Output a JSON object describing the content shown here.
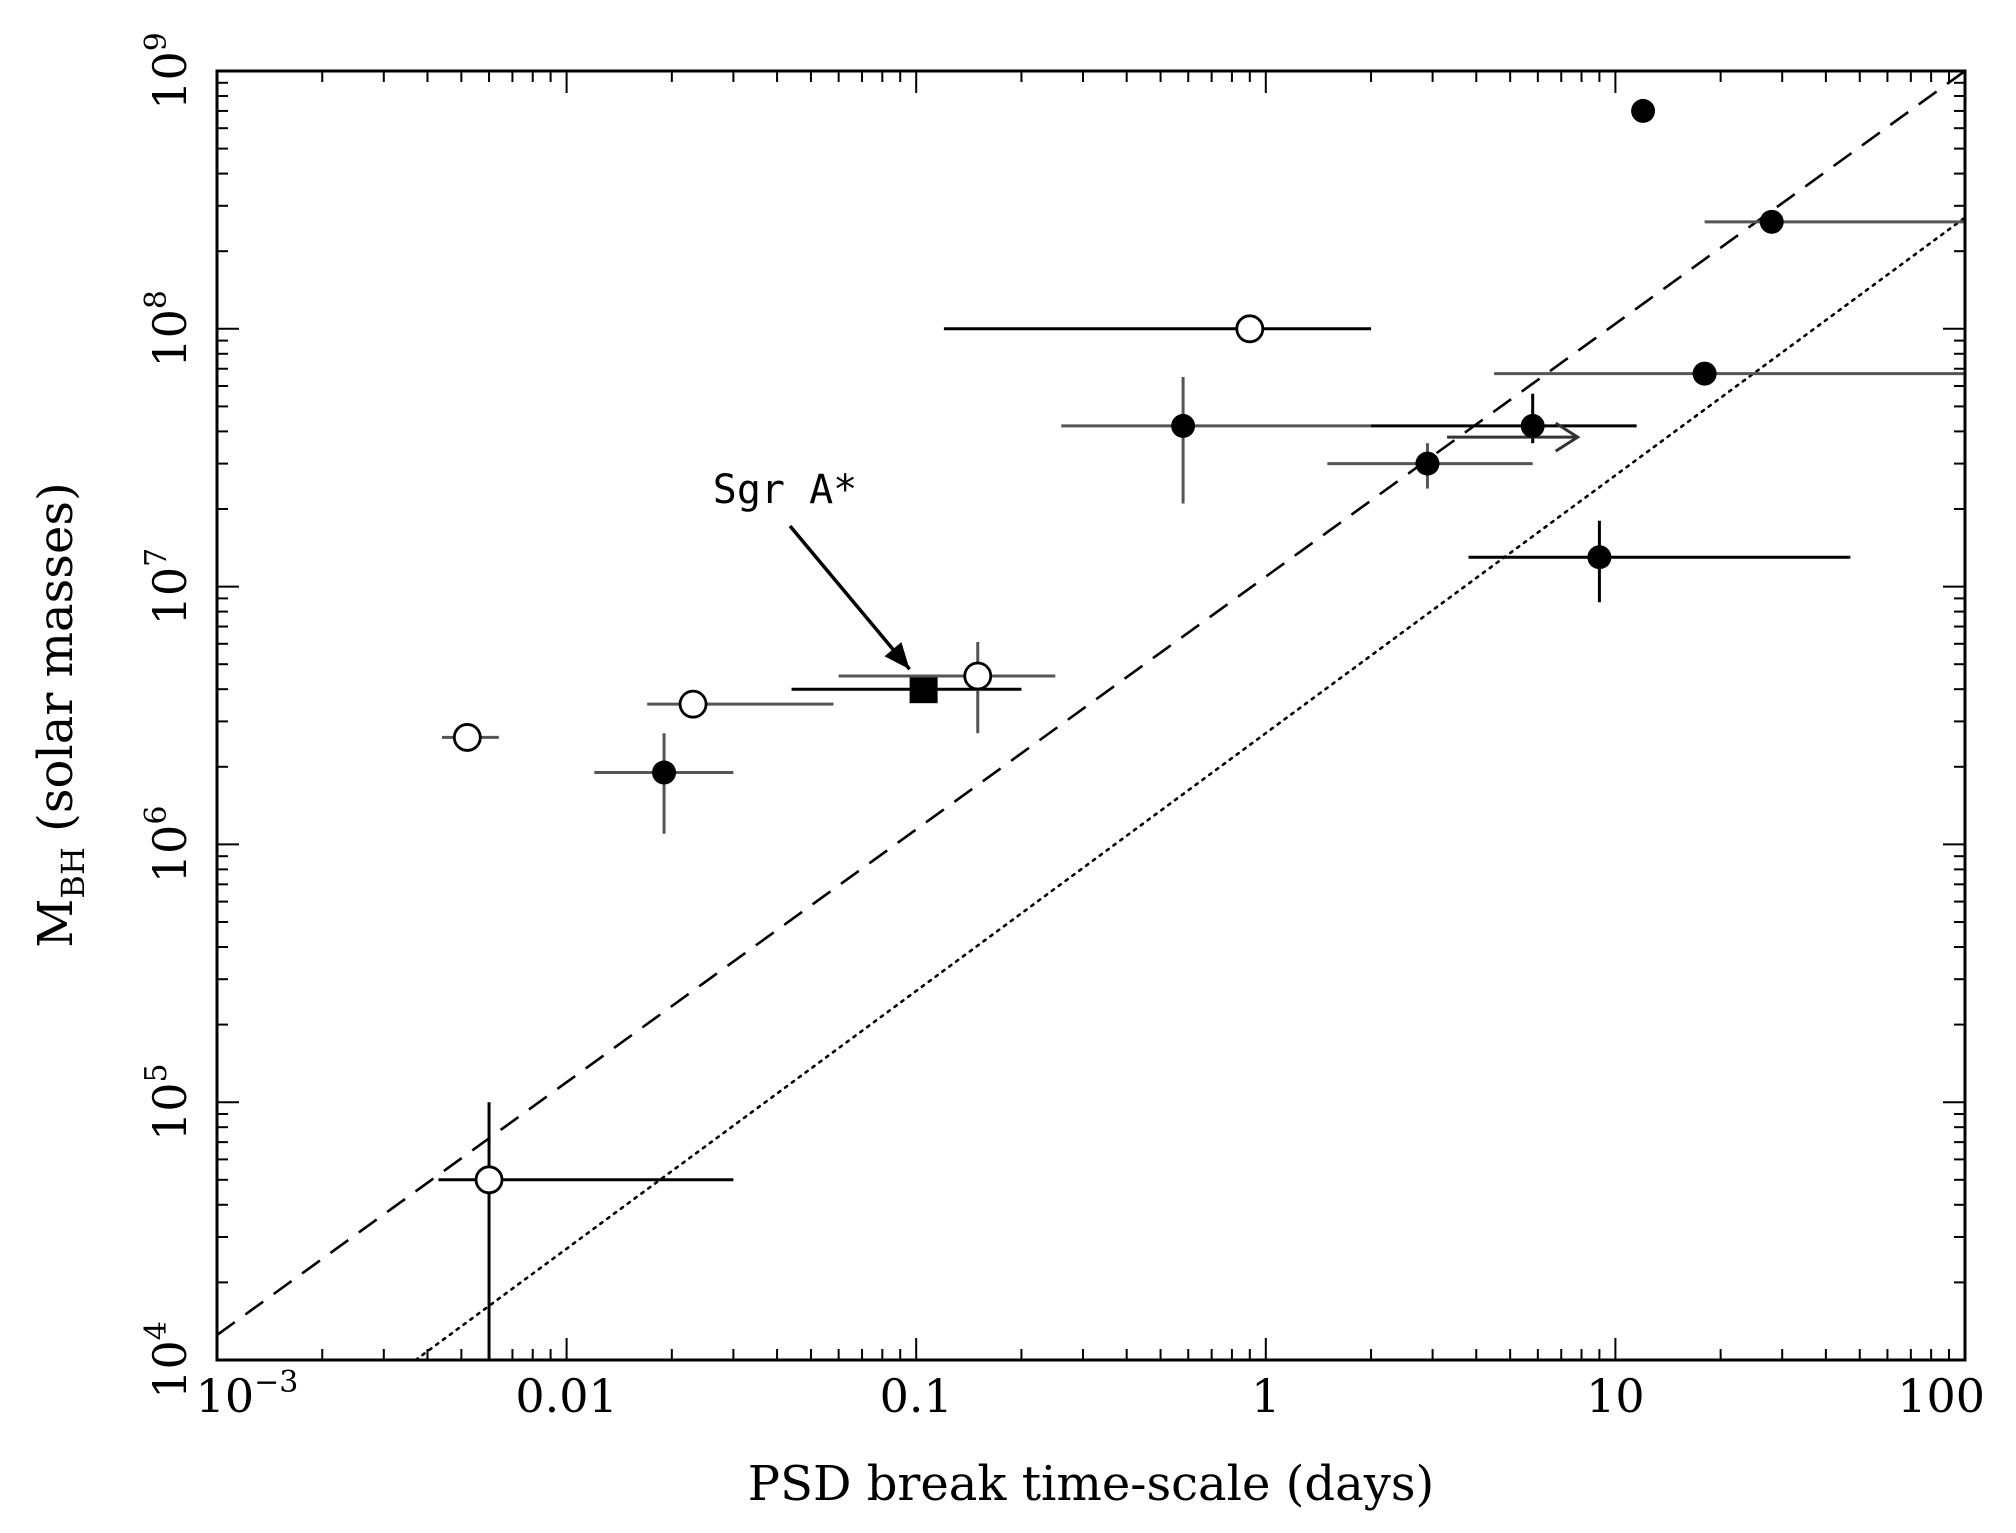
{
  "chart_data": {
    "type": "scatter",
    "title": "",
    "xlabel": "PSD break time-scale (days)",
    "ylabel_main": "M",
    "ylabel_sub": "BH",
    "ylabel_rest": " (solar masses)",
    "xscale": "log",
    "yscale": "log",
    "xlim": [
      0.001,
      100
    ],
    "ylim": [
      10000,
      1000000000
    ],
    "x_ticks": [
      {
        "value": 0.001,
        "base": "10",
        "exp": "−3"
      },
      {
        "value": 0.01,
        "label": "0.01"
      },
      {
        "value": 0.1,
        "label": "0.1"
      },
      {
        "value": 1,
        "label": "1"
      },
      {
        "value": 10,
        "label": "10"
      },
      {
        "value": 100,
        "label": "100"
      }
    ],
    "y_ticks": [
      {
        "value": 10000,
        "base": "10",
        "exp": "4"
      },
      {
        "value": 100000,
        "base": "10",
        "exp": "5"
      },
      {
        "value": 1000000,
        "base": "10",
        "exp": "6"
      },
      {
        "value": 10000000,
        "base": "10",
        "exp": "7"
      },
      {
        "value": 100000000,
        "base": "10",
        "exp": "8"
      },
      {
        "value": 1000000000,
        "base": "10",
        "exp": "9"
      }
    ],
    "grid": false,
    "lines": [
      {
        "style": "dashed",
        "x": [
          0.001,
          100
        ],
        "y": [
          12500,
          1000000000
        ]
      },
      {
        "style": "dotted",
        "x": [
          0.0037,
          100
        ],
        "y": [
          10000,
          270000000
        ]
      }
    ],
    "points": [
      {
        "marker": "open-circle",
        "x": 0.006,
        "y": 50000,
        "xerr": [
          0.0043,
          0.03
        ],
        "yerr": [
          10000,
          100000
        ],
        "color": "#000000"
      },
      {
        "marker": "open-circle",
        "x": 0.0052,
        "y": 2600000,
        "xerr": [
          0.0044,
          0.0064
        ],
        "color": "#555555"
      },
      {
        "marker": "filled-circle",
        "x": 0.019,
        "y": 1900000,
        "xerr": [
          0.012,
          0.03
        ],
        "yerr": [
          1100000,
          2700000
        ],
        "color": "#555555"
      },
      {
        "marker": "open-circle",
        "x": 0.023,
        "y": 3500000,
        "xerr": [
          0.017,
          0.058
        ],
        "color": "#555555"
      },
      {
        "marker": "filled-square",
        "x": 0.105,
        "y": 4000000,
        "xerr": [
          0.044,
          0.2
        ],
        "color": "#000000",
        "annotation": "Sgr A*"
      },
      {
        "marker": "open-circle",
        "x": 0.15,
        "y": 4500000,
        "xerr": [
          0.06,
          0.25
        ],
        "yerr": [
          2700000,
          6100000
        ],
        "color": "#555555"
      },
      {
        "marker": "open-circle",
        "x": 0.9,
        "y": 100000000,
        "xerr": [
          0.12,
          2.0
        ],
        "color": "#000000"
      },
      {
        "marker": "filled-circle",
        "x": 0.58,
        "y": 42000000,
        "xerr": [
          0.26,
          2.0
        ],
        "yerr": [
          21000000,
          65000000
        ],
        "color": "#555555"
      },
      {
        "marker": "filled-circle",
        "x": 2.9,
        "y": 30000000,
        "xerr": [
          1.5,
          5.8
        ],
        "yerr": [
          24000000,
          36000000
        ],
        "color": "#555555"
      },
      {
        "marker": "filled-circle",
        "x": 5.8,
        "y": 42000000,
        "xerr": [
          2.0,
          11.5
        ],
        "yerr": [
          36000000,
          56000000
        ],
        "color": "#000000",
        "lower_limit_arrow": true
      },
      {
        "marker": "filled-circle",
        "x": 9.0,
        "y": 13000000,
        "xerr": [
          3.8,
          47
        ],
        "yerr": [
          8700000,
          18000000
        ],
        "color": "#000000"
      },
      {
        "marker": "filled-circle",
        "x": 12,
        "y": 700000000,
        "color": "#000000"
      },
      {
        "marker": "filled-circle",
        "x": 18,
        "y": 67000000,
        "xerr": [
          4.5,
          100
        ],
        "color": "#555555"
      },
      {
        "marker": "filled-circle",
        "x": 28,
        "y": 260000000,
        "xerr": [
          18,
          100
        ],
        "color": "#555555"
      }
    ],
    "annotations": [
      {
        "text": "Sgr A*",
        "target_x": 0.105,
        "target_y": 4000000
      }
    ]
  }
}
